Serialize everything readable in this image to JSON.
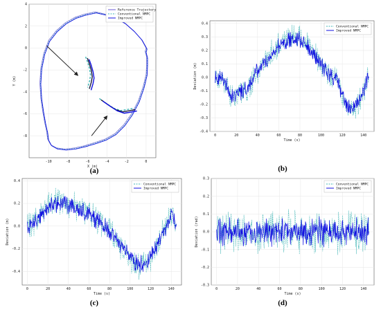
{
  "colors": {
    "reference": "#6b5bd6",
    "conventional": "#3fb5b5",
    "improved": "#1010e0",
    "arrow": "#222222",
    "grid": "#e6e6e6"
  },
  "chart_data": [
    {
      "panel": "(a)",
      "type": "line",
      "xlabel": "X (m)",
      "ylabel": "Y (m)",
      "xlim": [
        -12,
        1
      ],
      "ylim": [
        -10,
        4
      ],
      "xticks": [
        "-10",
        "-8",
        "-6",
        "-4",
        "-2",
        "0"
      ],
      "yticks": [
        "4",
        "2",
        "0",
        "-2",
        "-4",
        "-6",
        "-8"
      ],
      "grid": true,
      "legend": "top-right",
      "legend_entries": [
        "Reference Trajectory",
        "Conventional NMPC",
        "Improved NMPC"
      ],
      "series": [
        {
          "name": "Reference Trajectory",
          "style": "solid",
          "x": [
            0,
            -0.5,
            -1.3,
            -2.2,
            -3.2,
            -4.2,
            -5.2,
            -6.3,
            -7.3,
            -8.3,
            -9.2,
            -10,
            -10.5,
            -10.8,
            -10.9,
            -10.8,
            -10.6,
            -10.4,
            -10.2,
            -10.1,
            -9.8,
            -9.2,
            -8.3,
            -7.3,
            -6.3,
            -5.2,
            -4.2,
            -3.2,
            -2.3,
            -1.5,
            -0.8,
            -0.3,
            0,
            0.05,
            0.05,
            -0.1,
            0
          ],
          "y": [
            0,
            0.8,
            1.6,
            2.3,
            2.8,
            3.1,
            3.3,
            3.1,
            2.8,
            2.3,
            1.6,
            0.7,
            -0.5,
            -1.8,
            -3.2,
            -4.6,
            -5.8,
            -6.8,
            -7.6,
            -8.3,
            -8.8,
            -9.1,
            -9.2,
            -9.1,
            -8.9,
            -8.6,
            -8.3,
            -7.8,
            -7.0,
            -6.0,
            -4.8,
            -3.5,
            -2.4,
            -1.5,
            -0.8,
            -0.3,
            0
          ]
        },
        {
          "name": "Conventional NMPC",
          "style": "dashed",
          "x": [
            0,
            -0.5,
            -1.3,
            -2.2,
            -3.2,
            -4.2,
            -5.2,
            -6.3,
            -7.3,
            -8.3,
            -9.2,
            -10,
            -10.5,
            -10.8,
            -10.9,
            -10.8,
            -10.6,
            -10.4,
            -10.2,
            -10.1,
            -9.8,
            -9.2,
            -8.3,
            -7.3,
            -6.3,
            -5.2,
            -4.2,
            -3.2,
            -2.3,
            -1.5,
            -0.8,
            -0.3,
            0,
            0.05,
            0.05,
            -0.1,
            0
          ],
          "y": [
            0,
            0.8,
            1.6,
            2.3,
            2.8,
            3.1,
            3.3,
            3.1,
            2.8,
            2.3,
            1.6,
            0.7,
            -0.5,
            -1.8,
            -3.2,
            -4.6,
            -5.8,
            -6.8,
            -7.6,
            -8.3,
            -8.8,
            -9.1,
            -9.2,
            -9.1,
            -8.9,
            -8.6,
            -8.3,
            -7.8,
            -7.0,
            -6.0,
            -4.8,
            -3.5,
            -2.4,
            -1.5,
            -0.8,
            -0.3,
            0
          ]
        },
        {
          "name": "Improved NMPC",
          "style": "solid",
          "x": [
            0,
            -0.5,
            -1.3,
            -2.2,
            -3.2,
            -4.2,
            -5.2,
            -6.3,
            -7.3,
            -8.3,
            -9.2,
            -10,
            -10.5,
            -10.8,
            -10.9,
            -10.8,
            -10.6,
            -10.4,
            -10.2,
            -10.1,
            -9.8,
            -9.2,
            -8.3,
            -7.3,
            -6.3,
            -5.2,
            -4.2,
            -3.2,
            -2.3,
            -1.5,
            -0.8,
            -0.3,
            0,
            0.05,
            0.05,
            -0.1,
            0
          ],
          "y": [
            0,
            0.8,
            1.6,
            2.3,
            2.8,
            3.1,
            3.3,
            3.1,
            2.8,
            2.3,
            1.6,
            0.7,
            -0.5,
            -1.8,
            -3.2,
            -4.6,
            -5.8,
            -6.8,
            -7.6,
            -8.3,
            -8.8,
            -9.1,
            -9.2,
            -9.1,
            -8.9,
            -8.6,
            -8.3,
            -7.8,
            -7.0,
            -6.0,
            -4.8,
            -3.5,
            -2.4,
            -1.5,
            -0.8,
            -0.3,
            0
          ]
        }
      ],
      "insets": [
        {
          "x": [
            -6.2,
            -6.0,
            -5.8,
            -5.7,
            -5.8,
            -6.0
          ],
          "y": [
            -0.8,
            -1.3,
            -1.9,
            -2.5,
            -3.0,
            -3.6
          ]
        },
        {
          "x": [
            -4.8,
            -4.0,
            -3.3,
            -2.6,
            -1.9,
            -1.3
          ],
          "y": [
            -4.6,
            -5.1,
            -5.5,
            -5.7,
            -5.6,
            -5.5
          ]
        }
      ]
    },
    {
      "panel": "(b)",
      "type": "line",
      "xlabel": "Time (s)",
      "ylabel": "Deviation (m)",
      "xlim": [
        -5,
        150
      ],
      "ylim": [
        -0.4,
        0.42
      ],
      "xticks": [
        "0",
        "20",
        "40",
        "60",
        "80",
        "100",
        "120",
        "140"
      ],
      "yticks": [
        "0.4",
        "0.3",
        "0.2",
        "0.1",
        "0.0",
        "-0.1",
        "-0.2",
        "-0.3",
        "-0.4"
      ],
      "grid": true,
      "legend": "top-right",
      "legend_entries": [
        "Conventional NMPC",
        "Improved NMPC"
      ],
      "x": [
        0,
        5,
        10,
        15,
        20,
        25,
        30,
        35,
        40,
        45,
        50,
        55,
        60,
        65,
        70,
        75,
        80,
        85,
        90,
        95,
        100,
        105,
        110,
        115,
        120,
        125,
        130,
        135,
        140,
        145
      ],
      "series": [
        {
          "name": "Conventional NMPC",
          "style": "dashed",
          "values": [
            0,
            0,
            -0.05,
            -0.15,
            -0.12,
            -0.1,
            -0.1,
            -0.02,
            0.05,
            0.1,
            0.15,
            0.2,
            0.24,
            0.27,
            0.3,
            0.32,
            0.3,
            0.26,
            0.2,
            0.15,
            0.1,
            0.05,
            0,
            0,
            -0.15,
            -0.22,
            -0.25,
            -0.2,
            -0.1,
            0
          ],
          "noise": 0.07
        },
        {
          "name": "Improved NMPC",
          "style": "solid",
          "values": [
            0,
            0,
            -0.05,
            -0.14,
            -0.12,
            -0.1,
            -0.09,
            -0.02,
            0.05,
            0.1,
            0.14,
            0.19,
            0.23,
            0.26,
            0.28,
            0.3,
            0.28,
            0.24,
            0.19,
            0.14,
            0.09,
            0.05,
            0,
            0,
            -0.14,
            -0.21,
            -0.24,
            -0.19,
            -0.1,
            0
          ],
          "noise": 0.045
        }
      ]
    },
    {
      "panel": "(c)",
      "type": "line",
      "xlabel": "Time (s)",
      "ylabel": "Deviation (m)",
      "xlim": [
        -5,
        150
      ],
      "ylim": [
        -0.52,
        0.42
      ],
      "xticks": [
        "0",
        "20",
        "40",
        "60",
        "80",
        "100",
        "120",
        "140"
      ],
      "yticks": [
        "0.4",
        "0.2",
        "0.0",
        "-0.2",
        "-0.4"
      ],
      "grid": true,
      "legend": "top-right",
      "legend_entries": [
        "Conventional NMPC",
        "Improved NMPC"
      ],
      "x": [
        0,
        5,
        10,
        15,
        20,
        25,
        30,
        35,
        40,
        45,
        50,
        55,
        60,
        65,
        70,
        75,
        80,
        85,
        90,
        95,
        100,
        105,
        110,
        115,
        120,
        125,
        130,
        135,
        140,
        145
      ],
      "series": [
        {
          "name": "Conventional NMPC",
          "style": "dashed",
          "values": [
            0,
            0.02,
            0.06,
            0.12,
            0.17,
            0.2,
            0.22,
            0.22,
            0.2,
            0.18,
            0.16,
            0.14,
            0.12,
            0.08,
            0.04,
            0,
            -0.05,
            -0.1,
            -0.16,
            -0.22,
            -0.28,
            -0.33,
            -0.36,
            -0.34,
            -0.28,
            -0.2,
            -0.1,
            0,
            0.1,
            0.02
          ],
          "noise": 0.09
        },
        {
          "name": "Improved NMPC",
          "style": "solid",
          "values": [
            0,
            0.02,
            0.06,
            0.12,
            0.16,
            0.19,
            0.21,
            0.21,
            0.19,
            0.17,
            0.15,
            0.13,
            0.11,
            0.07,
            0.03,
            0,
            -0.05,
            -0.1,
            -0.15,
            -0.21,
            -0.27,
            -0.32,
            -0.34,
            -0.33,
            -0.27,
            -0.19,
            -0.1,
            0,
            0.09,
            0.02
          ],
          "noise": 0.06
        }
      ]
    },
    {
      "panel": "(d)",
      "type": "line",
      "xlabel": "Time (s)",
      "ylabel": "Deviation (rad)",
      "xlim": [
        -5,
        150
      ],
      "ylim": [
        -0.3,
        0.3
      ],
      "xticks": [
        "0",
        "20",
        "40",
        "60",
        "80",
        "100",
        "120",
        "140"
      ],
      "yticks": [
        "0.3",
        "0.2",
        "0.1",
        "0.0",
        "-0.1",
        "-0.2",
        "-0.3"
      ],
      "grid": true,
      "legend": "top-right",
      "legend_entries": [
        "Conventional NMPC",
        "Improved NMPC"
      ],
      "x": [
        0,
        5,
        10,
        15,
        20,
        25,
        30,
        35,
        40,
        45,
        50,
        55,
        60,
        65,
        70,
        75,
        80,
        85,
        90,
        95,
        100,
        105,
        110,
        115,
        120,
        125,
        130,
        135,
        140,
        145
      ],
      "series": [
        {
          "name": "Conventional NMPC",
          "style": "dashed",
          "values": [
            0,
            0,
            0,
            0,
            0,
            0,
            0,
            0,
            0,
            0,
            0,
            0,
            0,
            0,
            0,
            0,
            0,
            0,
            0,
            0,
            0,
            0,
            0,
            0,
            0,
            0,
            0,
            0,
            0,
            0
          ],
          "noise": 0.09
        },
        {
          "name": "Improved NMPC",
          "style": "solid",
          "values": [
            0,
            0,
            0,
            0,
            0,
            0,
            0,
            0,
            0,
            0,
            0,
            0,
            0,
            0,
            0,
            0,
            0,
            0,
            0,
            0,
            0,
            0,
            0,
            0,
            0,
            0,
            0,
            0,
            0,
            0
          ],
          "noise": 0.06
        }
      ]
    }
  ]
}
